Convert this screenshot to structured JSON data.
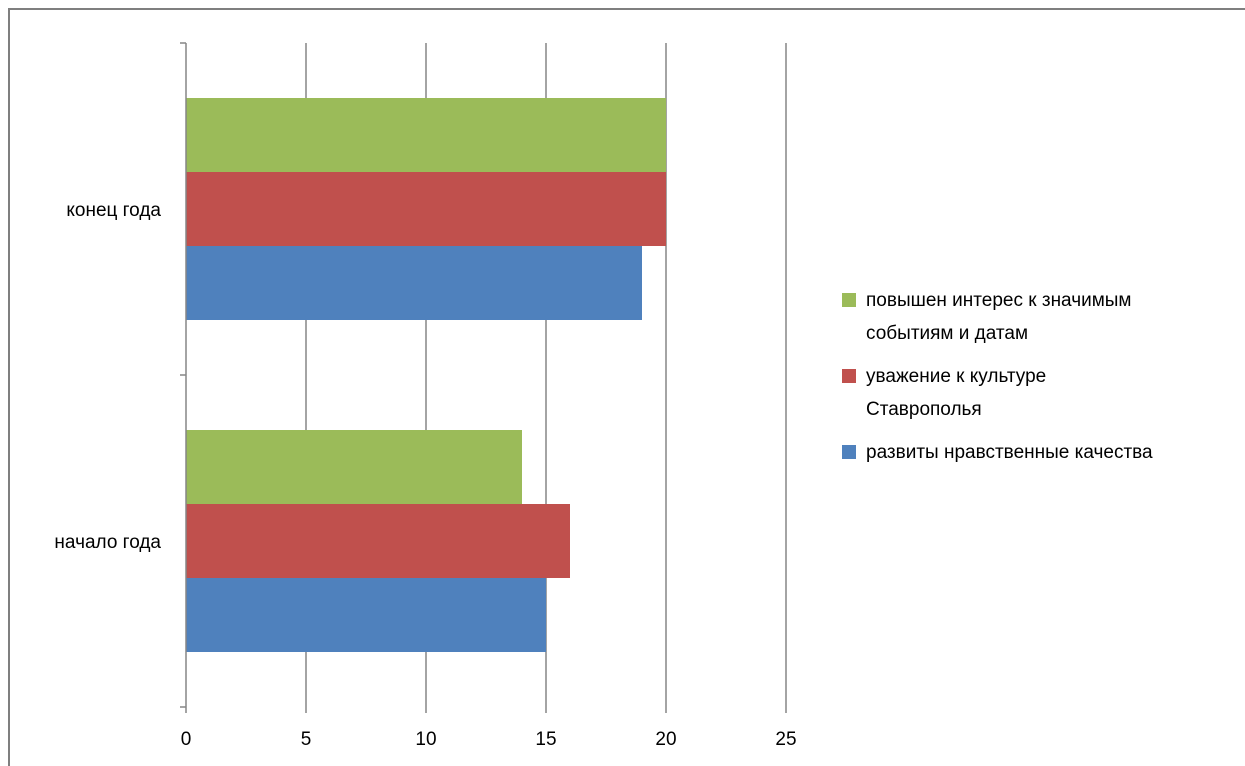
{
  "chart_data": {
    "type": "bar",
    "orientation": "horizontal",
    "categories": [
      "начало года",
      "конец года"
    ],
    "series": [
      {
        "name": "развиты нравственные качества",
        "color": "#4f81bd",
        "values": [
          15,
          19
        ]
      },
      {
        "name": "уважение к культуре Ставрополья",
        "color": "#c0504d",
        "values": [
          16,
          20
        ]
      },
      {
        "name": "повышен интерес к значимым событиям и датам",
        "color": "#9bbb59",
        "values": [
          14,
          20
        ]
      }
    ],
    "xlim": [
      0,
      25
    ],
    "xticks": [
      "0",
      "5",
      "10",
      "15",
      "20",
      "25"
    ],
    "grid": true,
    "legend_position": "right",
    "legend": [
      {
        "lines": [
          "повышен интерес к значимым",
          "событиям и датам"
        ],
        "color": "#9bbb59"
      },
      {
        "lines": [
          "уважение к культуре",
          "Ставрополья"
        ],
        "color": "#c0504d"
      },
      {
        "lines": [
          "развиты нравственные качества"
        ],
        "color": "#4f81bd"
      }
    ]
  }
}
